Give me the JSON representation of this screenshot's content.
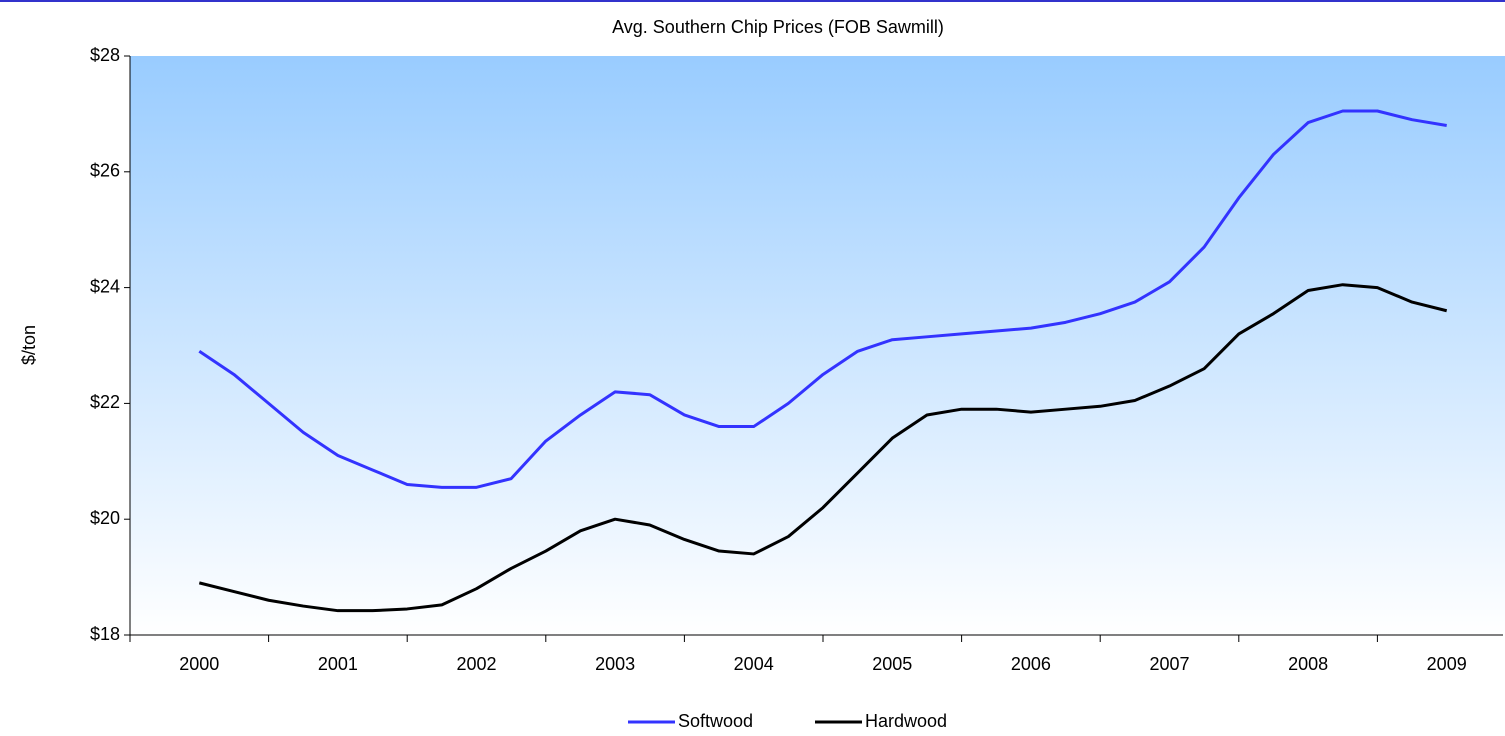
{
  "chart_data": {
    "type": "line",
    "title": "Avg. Southern Chip Prices (FOB Sawmill)",
    "ylabel": "$/ton",
    "categories": [
      "2000",
      null,
      null,
      null,
      "2001",
      null,
      null,
      null,
      "2002",
      null,
      null,
      null,
      "2003",
      null,
      null,
      null,
      "2004",
      null,
      null,
      null,
      "2005",
      null,
      null,
      null,
      "2006",
      null,
      null,
      null,
      "2007",
      null,
      null,
      null,
      "2008",
      null,
      null,
      null,
      "2009"
    ],
    "series": [
      {
        "name": "Softwood",
        "color": "#3333ff",
        "values": [
          22.9,
          22.5,
          22.0,
          21.5,
          21.1,
          20.85,
          20.6,
          20.55,
          20.55,
          20.7,
          21.35,
          21.8,
          22.2,
          22.15,
          21.8,
          21.6,
          21.6,
          22.0,
          22.5,
          22.9,
          23.1,
          23.15,
          23.2,
          23.25,
          23.3,
          23.4,
          23.55,
          23.75,
          24.1,
          24.7,
          25.55,
          26.3,
          26.85,
          27.05,
          27.05,
          26.9,
          26.8
        ]
      },
      {
        "name": "Hardwood",
        "color": "#000000",
        "values": [
          18.9,
          18.75,
          18.6,
          18.5,
          18.42,
          18.42,
          18.45,
          18.52,
          18.8,
          19.15,
          19.45,
          19.8,
          20.0,
          19.9,
          19.65,
          19.45,
          19.4,
          19.7,
          20.2,
          20.8,
          21.4,
          21.8,
          21.9,
          21.9,
          21.85,
          21.9,
          21.95,
          22.05,
          22.3,
          22.6,
          23.2,
          23.55,
          23.95,
          24.05,
          24.0,
          23.75,
          23.6
        ]
      }
    ],
    "ylim": [
      18,
      28
    ],
    "yticks": [
      {
        "value": 18,
        "label": "$18"
      },
      {
        "value": 20,
        "label": "$20"
      },
      {
        "value": 22,
        "label": "$22"
      },
      {
        "value": 24,
        "label": "$24"
      },
      {
        "value": 26,
        "label": "$26"
      },
      {
        "value": 28,
        "label": "$28"
      }
    ],
    "legend": "bottom"
  }
}
